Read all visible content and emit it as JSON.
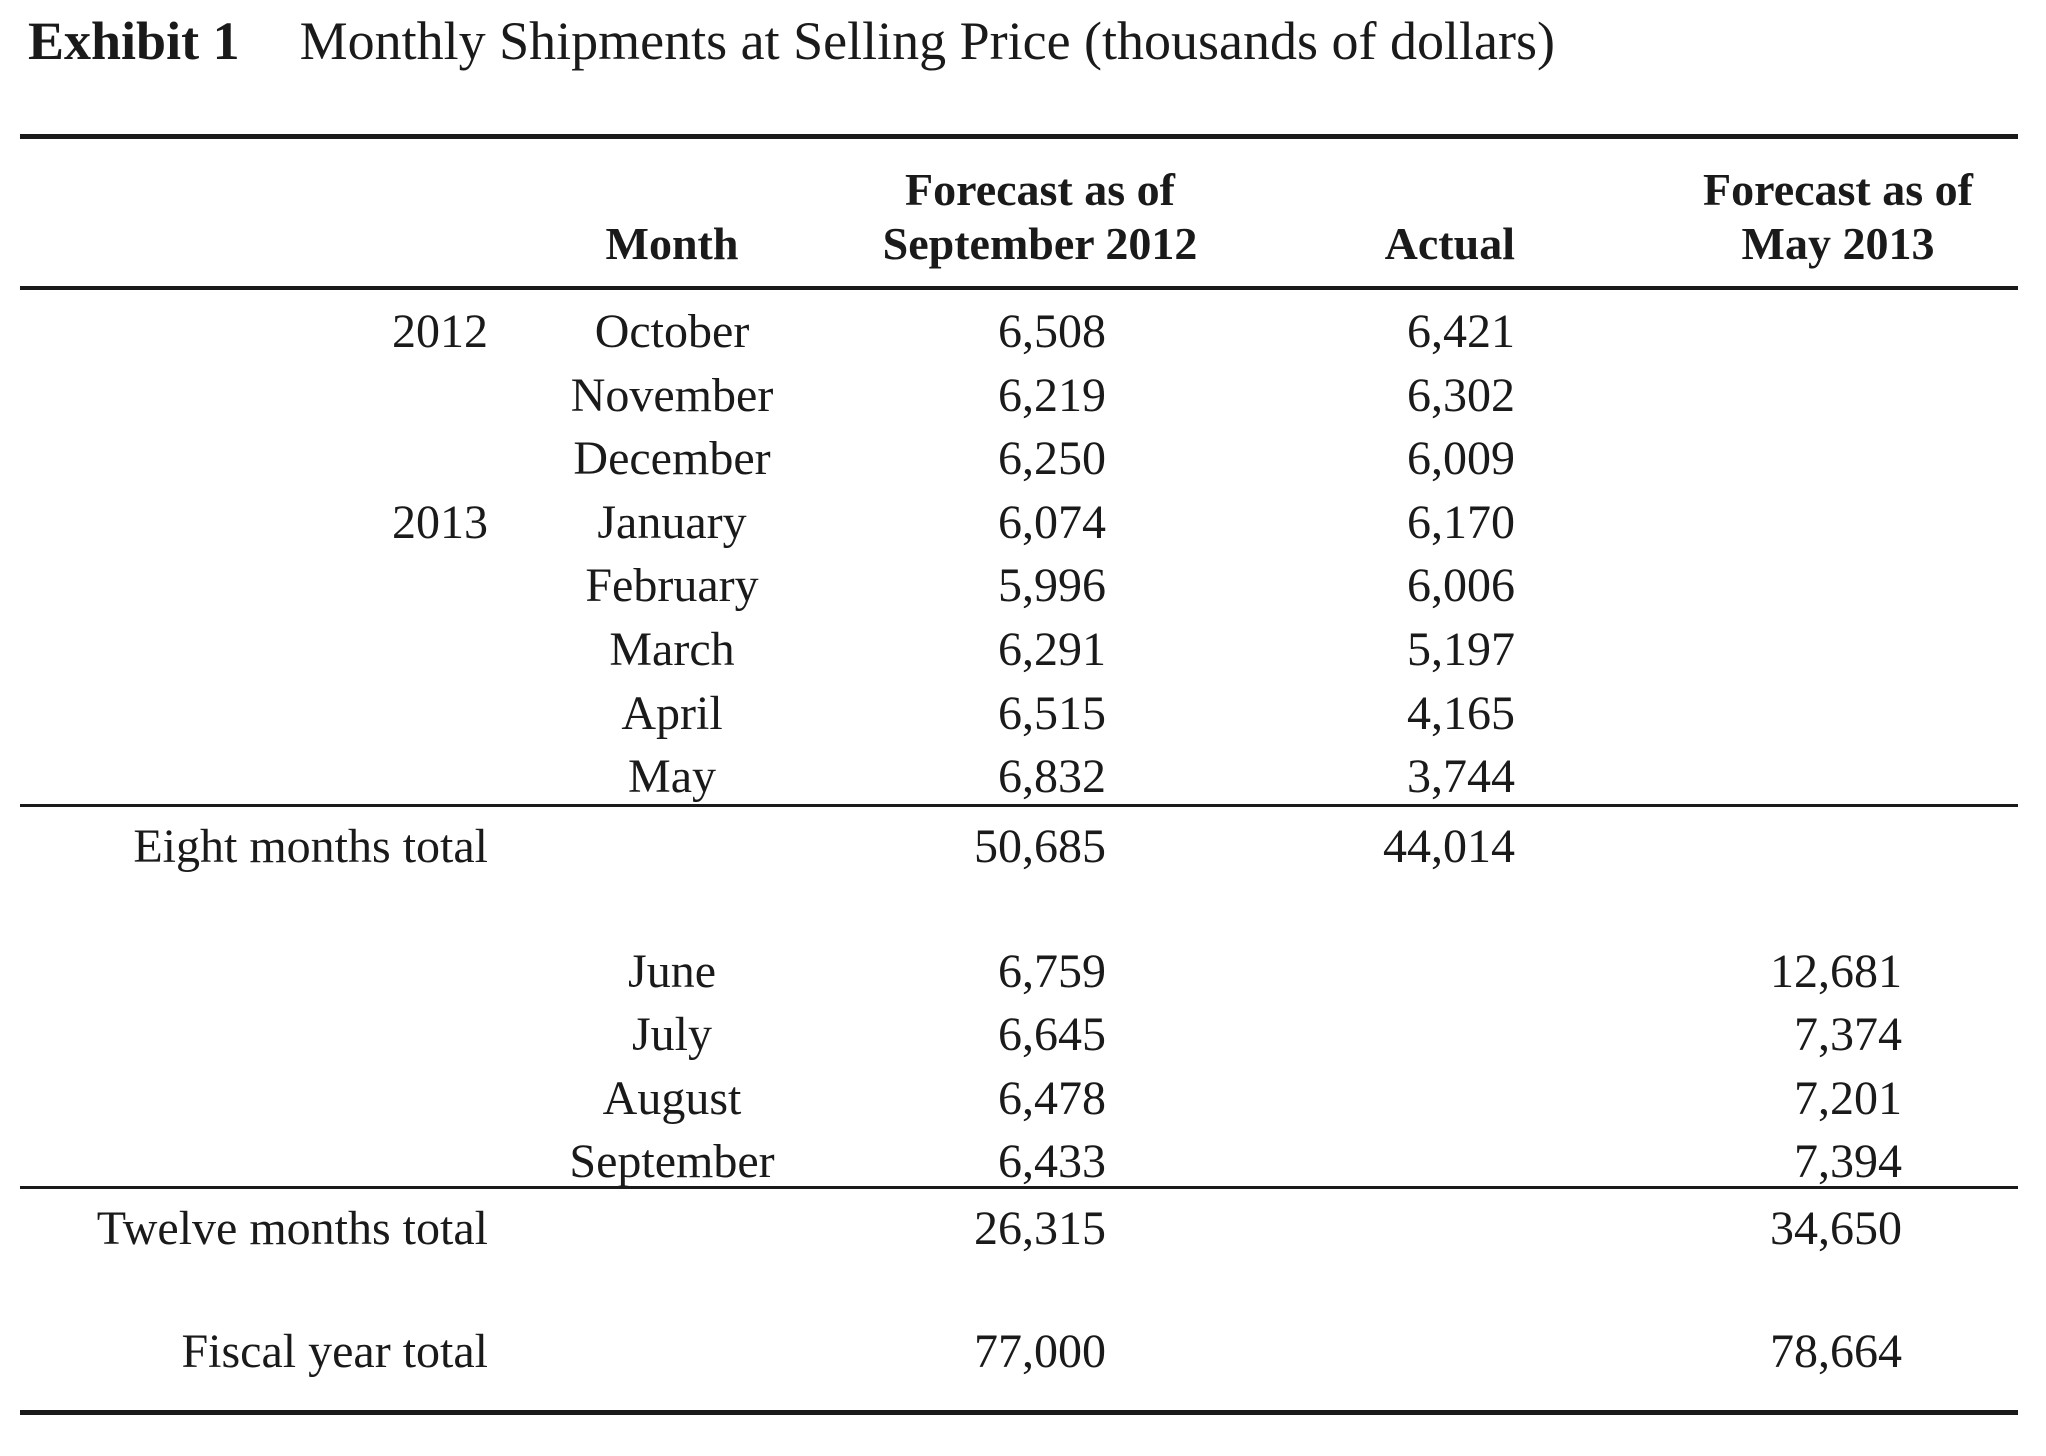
{
  "exhibit": {
    "label": "Exhibit 1",
    "title": "Monthly Shipments at Selling Price (thousands of dollars)"
  },
  "header": {
    "month": "Month",
    "forecast_sep_line1": "Forecast as of",
    "forecast_sep_line2": "September 2012",
    "actual": "Actual",
    "forecast_may_line1": "Forecast as of",
    "forecast_may_line2": "May 2013"
  },
  "rows": [
    {
      "year": "2012",
      "month": "October",
      "forecast_sep": "6,508",
      "actual": "6,421",
      "forecast_may": ""
    },
    {
      "year": "",
      "month": "November",
      "forecast_sep": "6,219",
      "actual": "6,302",
      "forecast_may": ""
    },
    {
      "year": "",
      "month": "December",
      "forecast_sep": "6,250",
      "actual": "6,009",
      "forecast_may": ""
    },
    {
      "year": "2013",
      "month": "January",
      "forecast_sep": "6,074",
      "actual": "6,170",
      "forecast_may": ""
    },
    {
      "year": "",
      "month": "February",
      "forecast_sep": "5,996",
      "actual": "6,006",
      "forecast_may": ""
    },
    {
      "year": "",
      "month": "March",
      "forecast_sep": "6,291",
      "actual": "5,197",
      "forecast_may": ""
    },
    {
      "year": "",
      "month": "April",
      "forecast_sep": "6,515",
      "actual": "4,165",
      "forecast_may": ""
    },
    {
      "year": "",
      "month": "May",
      "forecast_sep": "6,832",
      "actual": "3,744",
      "forecast_may": ""
    }
  ],
  "eight_months_total": {
    "label": "Eight months total",
    "forecast_sep": "50,685",
    "actual": "44,014"
  },
  "rows2": [
    {
      "month": "June",
      "forecast_sep": "6,759",
      "forecast_may": "12,681"
    },
    {
      "month": "July",
      "forecast_sep": "6,645",
      "forecast_may": "7,374"
    },
    {
      "month": "August",
      "forecast_sep": "6,478",
      "forecast_may": "7,201"
    },
    {
      "month": "September",
      "forecast_sep": "6,433",
      "forecast_may": "7,394"
    }
  ],
  "twelve_months_total": {
    "label": "Twelve months total",
    "forecast_sep": "26,315",
    "forecast_may": "34,650"
  },
  "fiscal_year_total": {
    "label": "Fiscal year total",
    "forecast_sep": "77,000",
    "forecast_may": "78,664"
  }
}
